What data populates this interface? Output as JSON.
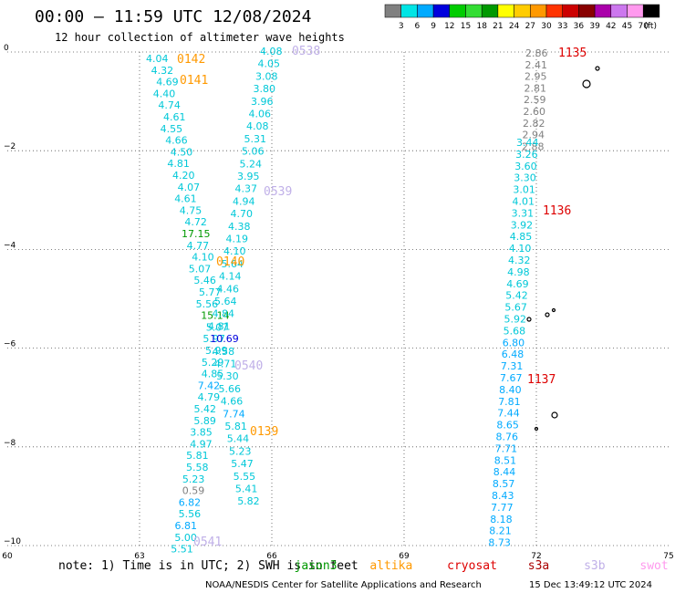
{
  "title": "00:00 – 11:59 UTC 12/08/2024",
  "subtitle": "12 hour collection of altimeter wave heights",
  "colorbar": {
    "unit": "(ft)",
    "labels": [
      "3",
      "6",
      "9",
      "12",
      "15",
      "18",
      "21",
      "24",
      "27",
      "30",
      "33",
      "36",
      "39",
      "42",
      "45",
      "70"
    ],
    "colors": [
      "#808080",
      "#00e5e5",
      "#00aaff",
      "#0000dd",
      "#00cc00",
      "#33dd33",
      "#009900",
      "#ffff00",
      "#ffcc00",
      "#ff9900",
      "#ff3300",
      "#cc0000",
      "#880000",
      "#aa00aa",
      "#cc77ee",
      "#ff99ee",
      "#000000"
    ]
  },
  "axes": {
    "y_ticks": [
      "0",
      "−2",
      "−4",
      "−6",
      "−8",
      "−10"
    ],
    "x_ticks": [
      "60",
      "63",
      "66",
      "69",
      "72",
      "75"
    ]
  },
  "track_labels": [
    {
      "text": "0142",
      "color": "#ff9900"
    },
    {
      "text": "0141",
      "color": "#ff9900"
    },
    {
      "text": "0140",
      "color": "#ff9900"
    },
    {
      "text": "0139",
      "color": "#ff9900"
    },
    {
      "text": "0538",
      "color": "#c0b0e8"
    },
    {
      "text": "0539",
      "color": "#c0b0e8"
    },
    {
      "text": "0540",
      "color": "#c0b0e8"
    },
    {
      "text": "0541",
      "color": "#c0b0e8"
    },
    {
      "text": "1135",
      "color": "#dd0000"
    },
    {
      "text": "1136",
      "color": "#dd0000"
    },
    {
      "text": "1137",
      "color": "#dd0000"
    }
  ],
  "track_a": [
    "4.04",
    "4.32",
    "4.69",
    "4.40",
    "4.74",
    "4.61",
    "4.55",
    "4.66",
    "4.50",
    "4.81",
    "4.20",
    "4.07",
    "4.61",
    "4.75",
    "4.72",
    "17.15",
    "4.77",
    "4.10",
    "5.07",
    "5.46",
    "5.77",
    "5.56",
    "15.14",
    "5.07",
    "5.97",
    "5.99",
    "5.29",
    "4.85",
    "7.42",
    "4.79",
    "5.42",
    "5.89",
    "3.85",
    "4.97",
    "5.81",
    "5.58",
    "5.23",
    "0.59",
    "6.82",
    "5.56",
    "6.81",
    "5.00",
    "5.51"
  ],
  "track_b": [
    "4.08",
    "4.05",
    "3.08",
    "3.80",
    "3.96",
    "4.06",
    "4.08",
    "5.31",
    "5.06",
    "5.24",
    "3.95",
    "4.37",
    "4.94",
    "4.70",
    "4.38",
    "4.19",
    "4.10",
    "5.64",
    "4.14",
    "4.46",
    "5.64",
    "4.84",
    "4.81",
    "10.69",
    "4.58",
    "4.71",
    "5.30",
    "5.66",
    "4.66",
    "7.74",
    "5.81",
    "5.44",
    "5.23",
    "5.47",
    "5.55",
    "5.41",
    "5.82"
  ],
  "track_c_gray": [
    "2.86",
    "2.41",
    "2.95",
    "2.81",
    "2.59",
    "2.60",
    "2.82",
    "2.94",
    "2.88"
  ],
  "track_c": [
    "3.44",
    "3.26",
    "3.60",
    "3.30",
    "3.01",
    "4.01",
    "3.31",
    "3.92",
    "4.85",
    "4.10",
    "4.32",
    "4.98",
    "4.69",
    "5.42",
    "5.67",
    "5.92",
    "5.68",
    "6.80",
    "6.48",
    "7.31",
    "7.67",
    "8.40",
    "7.81",
    "7.44",
    "8.65",
    "8.76",
    "7.71",
    "8.51",
    "8.44",
    "8.57",
    "8.43",
    "7.77",
    "8.18",
    "8.21",
    "8.73"
  ],
  "note": {
    "prefix": "note: 1) Time is in UTC; 2) SWH is in feet",
    "jason": "jason3",
    "altika": "altika",
    "cryosat": "cryosat",
    "s3a": "s3a",
    "s3b": "s3b",
    "swot": "swot"
  },
  "footer": "NOAA/NESDIS Center for Satellite Applications and Research",
  "footer_date": "15 Dec 13:49:12 UTC 2024",
  "map": {
    "lon_range": [
      60,
      75
    ],
    "lat_range": [
      -10,
      0
    ]
  }
}
